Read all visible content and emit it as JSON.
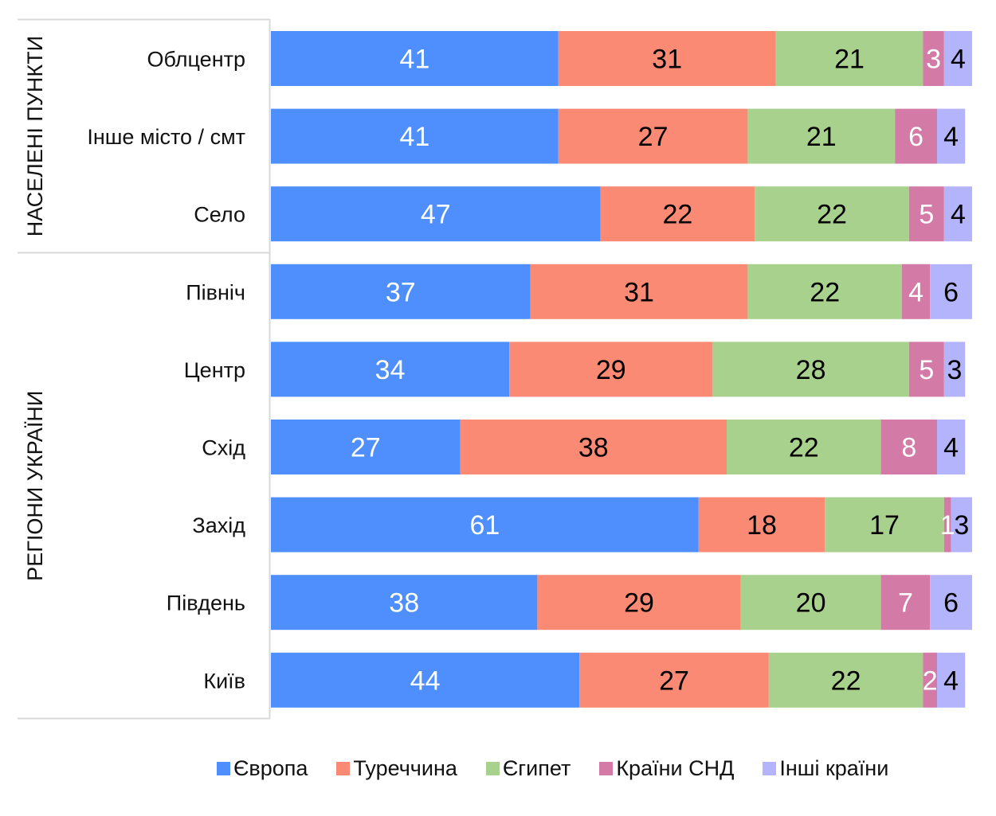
{
  "chart_data": {
    "type": "bar",
    "orientation": "horizontal",
    "stacked": true,
    "title": "",
    "xlabel": "",
    "ylabel": "",
    "xlim": [
      0,
      100
    ],
    "grid": false,
    "legend_position": "bottom",
    "groups": [
      {
        "name": "НАСЕЛЕНІ ПУНКТИ",
        "categories": [
          "Облцентр",
          "Інше місто / смт",
          "Село"
        ]
      },
      {
        "name": "РЕГІОНИ УКРАЇНИ",
        "categories": [
          "Північ",
          "Центр",
          "Схід",
          "Захід",
          "Південь",
          "Київ"
        ]
      }
    ],
    "categories": [
      "Облцентр",
      "Інше місто / смт",
      "Село",
      "Північ",
      "Центр",
      "Схід",
      "Захід",
      "Південь",
      "Київ"
    ],
    "series": [
      {
        "name": "Європа",
        "color": "#4f8ffd",
        "label_color": "#ffffff",
        "values": [
          41,
          41,
          47,
          37,
          34,
          27,
          61,
          38,
          44
        ]
      },
      {
        "name": "Туреччина",
        "color": "#fb8a75",
        "label_color": "#000000",
        "values": [
          31,
          27,
          22,
          31,
          29,
          38,
          18,
          29,
          27
        ]
      },
      {
        "name": "Єгипет",
        "color": "#a9d18e",
        "label_color": "#000000",
        "values": [
          21,
          21,
          22,
          22,
          28,
          22,
          17,
          20,
          22
        ]
      },
      {
        "name": "Країни СНД",
        "color": "#d47aa6",
        "label_color": "#ffffff",
        "values": [
          3,
          6,
          5,
          4,
          5,
          8,
          1,
          7,
          2
        ]
      },
      {
        "name": "Інші країни",
        "color": "#b4b4fc",
        "label_color": "#000000",
        "values": [
          4,
          4,
          4,
          6,
          3,
          4,
          3,
          6,
          4
        ]
      }
    ]
  }
}
